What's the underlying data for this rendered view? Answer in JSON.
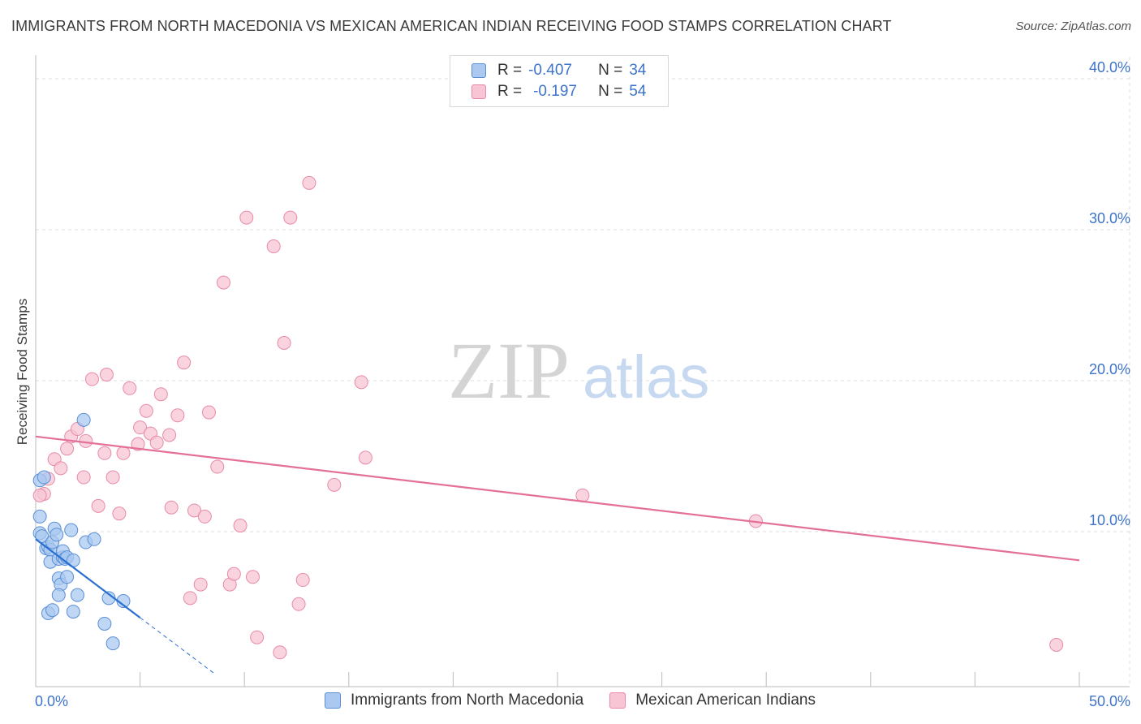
{
  "header": {
    "title": "IMMIGRANTS FROM NORTH MACEDONIA VS MEXICAN AMERICAN INDIAN RECEIVING FOOD STAMPS CORRELATION CHART",
    "source": "Source: ZipAtlas.com"
  },
  "watermark": {
    "zip": "ZIP",
    "atlas": "atlas"
  },
  "legend": {
    "rows": [
      {
        "r_label": "R =",
        "r_value": "-0.407",
        "n_label": "N =",
        "n_value": "34"
      },
      {
        "r_label": "R =",
        "r_value": "-0.197",
        "n_label": "N =",
        "n_value": "54"
      }
    ]
  },
  "colors": {
    "blue_fill": "#aac8f0",
    "blue_stroke": "#5a8fd6",
    "blue_line": "#2a6fd1",
    "pink_fill": "#f7c5d3",
    "pink_stroke": "#e88aa8",
    "pink_line": "#e4709a",
    "axis_text": "#3d74c9",
    "grid": "#dddddd"
  },
  "chart_data": {
    "type": "scatter",
    "title": "IMMIGRANTS FROM NORTH MACEDONIA VS MEXICAN AMERICAN INDIAN RECEIVING FOOD STAMPS CORRELATION CHART",
    "xlabel": "",
    "ylabel": "Receiving Food Stamps",
    "xlim": [
      0,
      50
    ],
    "ylim": [
      0,
      42
    ],
    "x_tick_labels": [
      "0.0%",
      "50.0%"
    ],
    "y_ticks": [
      10,
      20,
      30,
      40
    ],
    "y_tick_labels": [
      "10.0%",
      "20.0%",
      "30.0%",
      "40.0%"
    ],
    "grid": true,
    "legend_position": "top-center",
    "series": [
      {
        "name": "Immigrants from North Macedonia",
        "color": "blue",
        "R": -0.407,
        "N": 34,
        "trend": {
          "x0": 0.0,
          "y0": 9.5,
          "x1": 5.0,
          "y1": 4.3,
          "dash_to_x": 8.6
        },
        "points": [
          [
            0.2,
            13.4
          ],
          [
            0.4,
            13.6
          ],
          [
            0.2,
            11.0
          ],
          [
            0.2,
            9.9
          ],
          [
            0.3,
            9.7
          ],
          [
            0.5,
            8.9
          ],
          [
            0.6,
            9.0
          ],
          [
            0.7,
            8.8
          ],
          [
            0.8,
            9.3
          ],
          [
            0.9,
            10.2
          ],
          [
            1.0,
            9.8
          ],
          [
            0.7,
            8.0
          ],
          [
            1.1,
            8.2
          ],
          [
            1.3,
            8.3
          ],
          [
            1.3,
            8.7
          ],
          [
            1.4,
            8.2
          ],
          [
            1.5,
            8.3
          ],
          [
            1.8,
            8.1
          ],
          [
            1.7,
            10.1
          ],
          [
            2.4,
            9.3
          ],
          [
            2.8,
            9.5
          ],
          [
            1.1,
            6.9
          ],
          [
            1.2,
            6.5
          ],
          [
            1.5,
            7.0
          ],
          [
            1.1,
            5.8
          ],
          [
            2.0,
            5.8
          ],
          [
            3.5,
            5.6
          ],
          [
            4.2,
            5.4
          ],
          [
            0.6,
            4.6
          ],
          [
            0.8,
            4.8
          ],
          [
            1.8,
            4.7
          ],
          [
            3.3,
            3.9
          ],
          [
            3.7,
            2.6
          ],
          [
            2.3,
            17.4
          ]
        ]
      },
      {
        "name": "Mexican American Indians",
        "color": "pink",
        "R": -0.197,
        "N": 54,
        "trend": {
          "x0": 0.0,
          "y0": 16.3,
          "x1": 50.0,
          "y1": 8.1
        },
        "points": [
          [
            0.4,
            12.5
          ],
          [
            0.6,
            13.5
          ],
          [
            0.9,
            14.8
          ],
          [
            1.2,
            14.2
          ],
          [
            1.5,
            15.5
          ],
          [
            1.7,
            16.3
          ],
          [
            2.0,
            16.8
          ],
          [
            2.3,
            13.6
          ],
          [
            2.4,
            16.0
          ],
          [
            2.7,
            20.1
          ],
          [
            3.0,
            11.7
          ],
          [
            3.3,
            15.2
          ],
          [
            3.4,
            20.4
          ],
          [
            3.7,
            13.6
          ],
          [
            4.0,
            11.2
          ],
          [
            4.2,
            15.2
          ],
          [
            4.5,
            19.5
          ],
          [
            4.9,
            15.8
          ],
          [
            5.0,
            16.9
          ],
          [
            5.3,
            18.0
          ],
          [
            5.5,
            16.5
          ],
          [
            5.8,
            15.9
          ],
          [
            6.0,
            19.1
          ],
          [
            6.4,
            16.4
          ],
          [
            6.5,
            11.6
          ],
          [
            6.8,
            17.7
          ],
          [
            7.1,
            21.2
          ],
          [
            7.4,
            5.6
          ],
          [
            7.6,
            11.4
          ],
          [
            7.9,
            6.5
          ],
          [
            8.1,
            11.0
          ],
          [
            8.3,
            17.9
          ],
          [
            8.7,
            14.3
          ],
          [
            9.0,
            26.5
          ],
          [
            9.3,
            6.5
          ],
          [
            9.5,
            7.2
          ],
          [
            9.8,
            10.4
          ],
          [
            10.1,
            30.8
          ],
          [
            10.4,
            7.0
          ],
          [
            10.6,
            3.0
          ],
          [
            11.4,
            28.9
          ],
          [
            11.7,
            2.0
          ],
          [
            11.9,
            22.5
          ],
          [
            12.2,
            30.8
          ],
          [
            12.6,
            5.2
          ],
          [
            12.8,
            6.8
          ],
          [
            13.1,
            33.1
          ],
          [
            14.3,
            13.1
          ],
          [
            15.6,
            19.9
          ],
          [
            15.8,
            14.9
          ],
          [
            26.2,
            12.4
          ],
          [
            34.5,
            10.7
          ],
          [
            48.9,
            2.5
          ],
          [
            0.2,
            12.4
          ]
        ]
      }
    ]
  }
}
